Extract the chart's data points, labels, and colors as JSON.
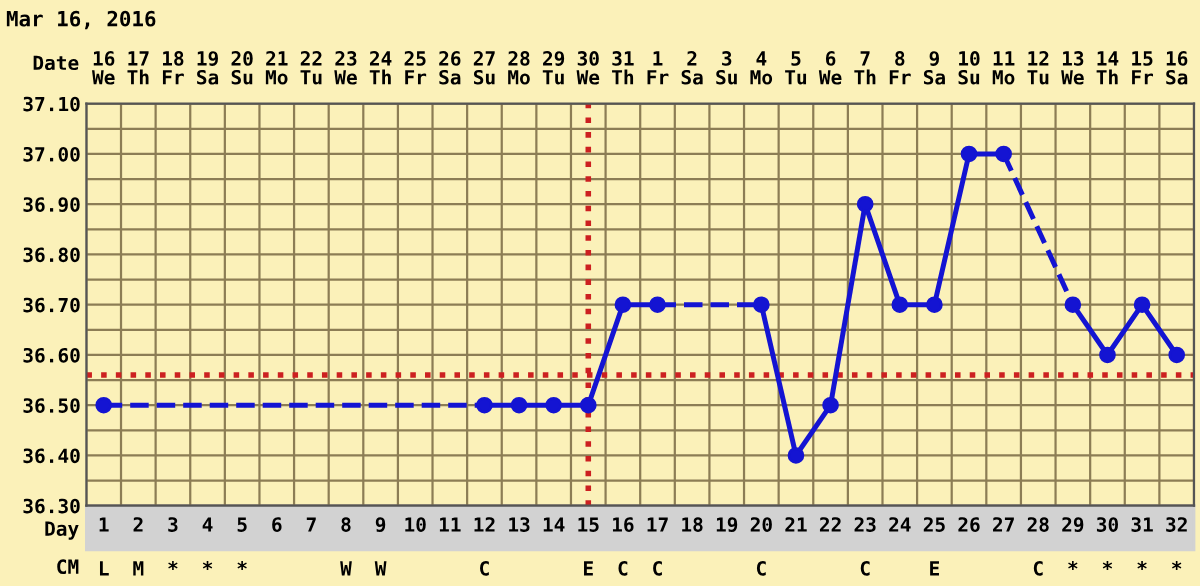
{
  "chart_data": {
    "type": "line",
    "title": "Mar 16, 2016",
    "xlabel": "Day",
    "categories": [
      "1",
      "2",
      "3",
      "4",
      "5",
      "6",
      "7",
      "8",
      "9",
      "10",
      "11",
      "12",
      "13",
      "14",
      "15",
      "16",
      "17",
      "18",
      "19",
      "20",
      "21",
      "22",
      "23",
      "24",
      "25",
      "26",
      "27",
      "28",
      "29",
      "30",
      "31",
      "32"
    ],
    "series": [
      {
        "color": "#1414d2",
        "values": [
          36.5,
          null,
          null,
          null,
          null,
          null,
          null,
          null,
          null,
          null,
          null,
          36.5,
          36.5,
          36.5,
          36.5,
          36.7,
          36.7,
          null,
          null,
          36.7,
          36.4,
          36.5,
          36.9,
          36.7,
          36.7,
          37.0,
          37.0,
          null,
          36.7,
          36.6,
          36.7,
          36.6
        ]
      }
    ],
    "ylim": [
      36.3,
      37.1
    ],
    "yticks": [
      {
        "value": 36.3,
        "label": "36.30"
      },
      {
        "value": 36.35,
        "label": null
      },
      {
        "value": 36.4,
        "label": "36.40"
      },
      {
        "value": 36.45,
        "label": null
      },
      {
        "value": 36.5,
        "label": "36.50"
      },
      {
        "value": 36.55,
        "label": null
      },
      {
        "value": 36.6,
        "label": "36.60"
      },
      {
        "value": 36.65,
        "label": null
      },
      {
        "value": 36.7,
        "label": "36.70"
      },
      {
        "value": 36.75,
        "label": null
      },
      {
        "value": 36.8,
        "label": "36.80"
      },
      {
        "value": 36.85,
        "label": null
      },
      {
        "value": 36.9,
        "label": "36.90"
      },
      {
        "value": 36.95,
        "label": null
      },
      {
        "value": 37.0,
        "label": "37.00"
      },
      {
        "value": 37.05,
        "label": null
      },
      {
        "value": 37.1,
        "label": "37.10"
      }
    ],
    "ref_lines": [
      {
        "axis": "y",
        "value": 36.56,
        "color": "#cc2020",
        "line_style": "dotted"
      },
      {
        "axis": "x",
        "value": "15",
        "color": "#cc2020",
        "line_style": "dotted"
      }
    ],
    "annotations": [
      "Date",
      "16\nWe",
      "17\nTh",
      "18\nFr",
      "19\nSa",
      "20\nSu",
      "21\nMo",
      "22\nTu",
      "23\nWe",
      "24\nTh",
      "25\nFr",
      "26\nSa",
      "27\nSu",
      "28\nMo",
      "29\nTu",
      "30\nWe",
      "31\nTh",
      "1\nFr",
      "2\nSa",
      "3\nSu",
      "4\nMo",
      "5\nTu",
      "6\nWe",
      "7\nTh",
      "8\nFr",
      "9\nSa",
      "10\nSu",
      "11\nMo",
      "12\nTu",
      "13\nWe",
      "14\nTh",
      "15\nFr",
      "16\nSa",
      "CM",
      "L",
      "M",
      "*",
      "*",
      "*",
      null,
      null,
      "W",
      "W",
      null,
      null,
      "C",
      null,
      null,
      "E",
      "C",
      "C",
      null,
      null,
      "C",
      null,
      null,
      "C",
      null,
      "E",
      null,
      null,
      "C",
      "*",
      "*",
      "*",
      "*"
    ],
    "grid": true,
    "marker": "circle",
    "line_style": "solid",
    "legend": false
  }
}
